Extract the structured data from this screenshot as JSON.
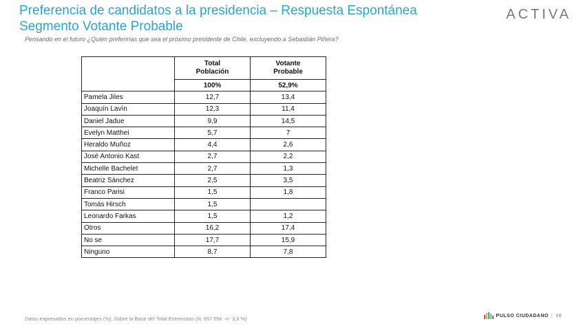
{
  "header": {
    "title_line1": "Preferencia de candidatos a la presidencia – Respuesta Espontánea",
    "title_line2": "Segmento Votante Probable",
    "subtitle": "Pensando en el futuro ¿Quién preferirías que sea el próximo presidente de Chile, excluyendo a Sebastián Piñera?",
    "logo": "ACTIVA"
  },
  "table": {
    "col1_line1": "Total",
    "col1_line2": "Población",
    "col2_line1": "Votante",
    "col2_line2": "Probable",
    "base_total": "100%",
    "base_probable": "52,9%",
    "rows": [
      {
        "name": "Pamela Jiles",
        "total": "12,7",
        "probable": "13,4"
      },
      {
        "name": "Joaquín Lavín",
        "total": "12,3",
        "probable": "11,4"
      },
      {
        "name": "Daniel Jadue",
        "total": "9,9",
        "probable": "14,5"
      },
      {
        "name": "Evelyn Matthei",
        "total": "5,7",
        "probable": "7"
      },
      {
        "name": "Heraldo Muñoz",
        "total": "4,4",
        "probable": "2,6"
      },
      {
        "name": "José Antonio Kast",
        "total": "2,7",
        "probable": "2,2"
      },
      {
        "name": "Michelle Bachelet",
        "total": "2,7",
        "probable": "1,3"
      },
      {
        "name": "Beatriz Sánchez",
        "total": "2,5",
        "probable": "3,5"
      },
      {
        "name": "Franco Parisi",
        "total": "1,5",
        "probable": "1,8"
      },
      {
        "name": "Tomás Hirsch",
        "total": "1,5",
        "probable": ""
      },
      {
        "name": "Leonardo Farkas",
        "total": "1,5",
        "probable": "1,2"
      },
      {
        "name": "Otros",
        "total": "16,2",
        "probable": "17,4"
      },
      {
        "name": "No se",
        "total": "17,7",
        "probable": "15,9"
      },
      {
        "name": "Ninguno",
        "total": "8,7",
        "probable": "7,8"
      }
    ]
  },
  "footer": {
    "note": "Datos expresados en porcentajes (%). Sobre la Base del Total Entrevistas (N: 657  EM: +/- 3,8 %)",
    "brand": "PULSO CIUDADANO",
    "separator": "|",
    "page_number": "48",
    "bar_colors": [
      "#e84c3d",
      "#f2a33a",
      "#2aa3d6",
      "#8bc34a",
      "#9b59b6"
    ]
  },
  "colors": {
    "title": "#2aa3d6"
  }
}
